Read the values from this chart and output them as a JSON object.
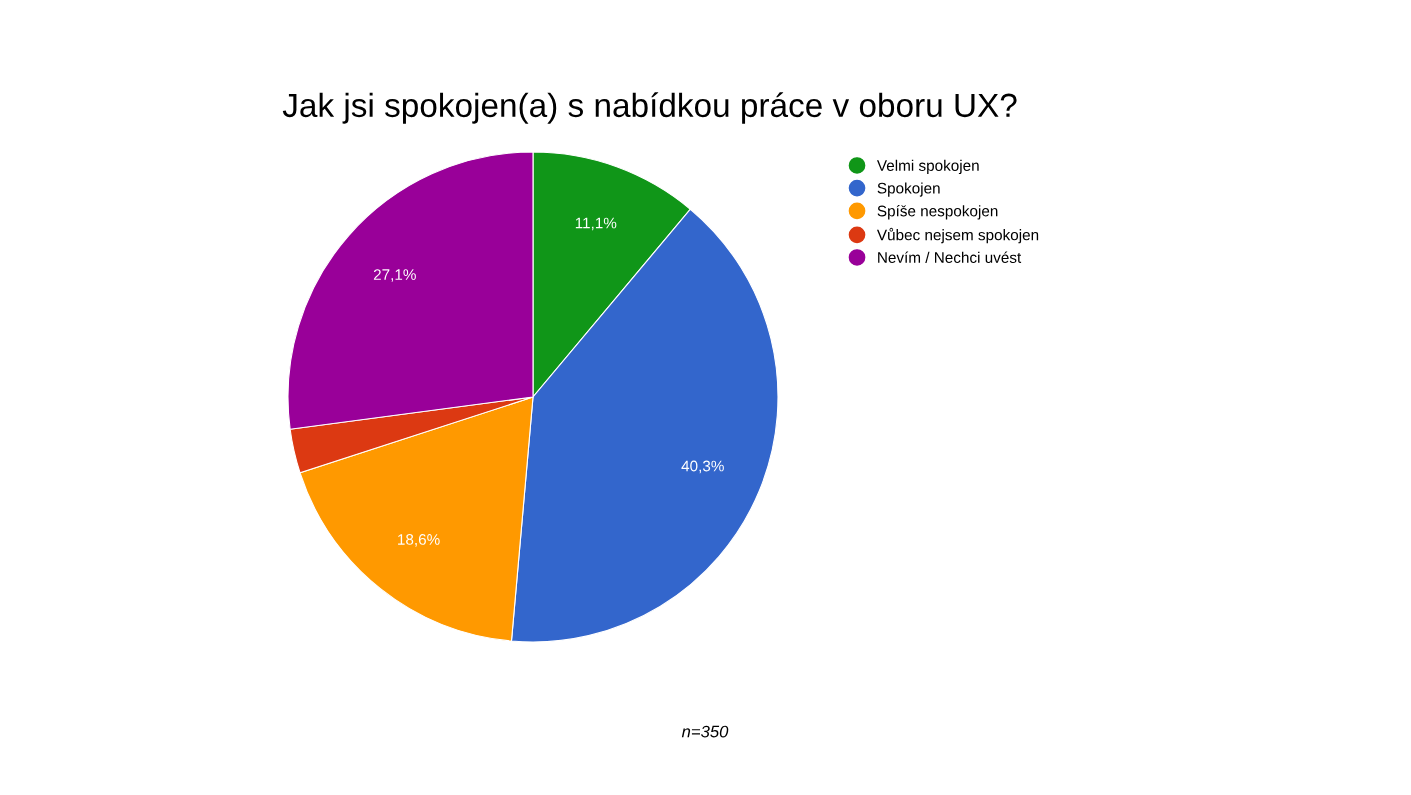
{
  "chart_data": {
    "type": "pie",
    "title": "Jak jsi spokojen(a) s nabídkou práce v oboru UX?",
    "categories": [
      "Velmi spokojen",
      "Spokojen",
      "Spíše nespokojen",
      "Vůbec nejsem spokojen",
      "Nevím / Nechci uvést"
    ],
    "values": [
      11.1,
      40.3,
      18.6,
      2.9,
      27.1
    ],
    "value_labels": [
      "11,1%",
      "40,3%",
      "18,6%",
      null,
      "27,1%"
    ],
    "colors": [
      "#109618",
      "#3366cc",
      "#ff9900",
      "#dc3912",
      "#990099"
    ],
    "legend": "right",
    "annotations": [
      "n=350"
    ]
  }
}
